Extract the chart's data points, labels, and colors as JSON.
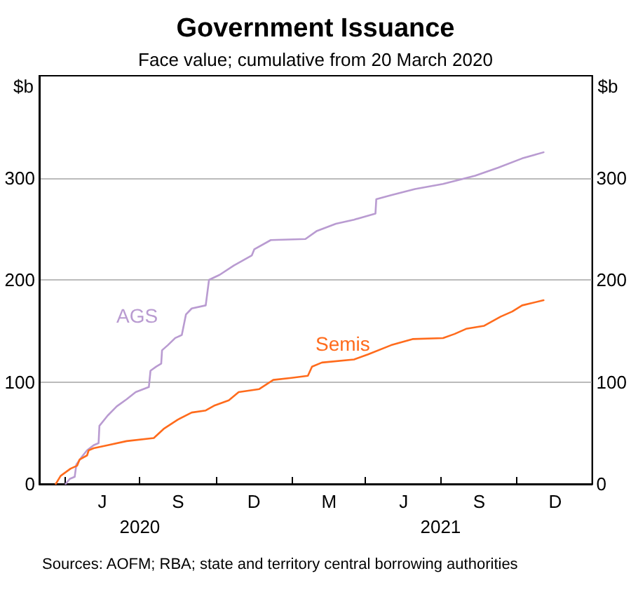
{
  "chart_data": {
    "type": "line",
    "title": "Government Issuance",
    "subtitle": "Face value; cumulative from 20 March 2020",
    "ylabel": "$b",
    "y2label": "$b",
    "xlim": [
      "2020-03-01",
      "2022-01-01"
    ],
    "xticks": [
      {
        "value": "2020-04-01",
        "label": null
      },
      {
        "value": "2020-07-01",
        "label": "2020"
      },
      {
        "value": "2020-10-01",
        "label": null
      },
      {
        "value": "2021-01-01",
        "label": null
      },
      {
        "value": "2021-04-01",
        "label": null
      },
      {
        "value": "2021-07-01",
        "label": "2021"
      },
      {
        "value": "2021-10-01",
        "label": null
      }
    ],
    "ylim": [
      0,
      400
    ],
    "yticks": [
      0,
      100,
      200,
      300
    ],
    "y2lim": [
      0,
      400
    ],
    "y2ticks": [
      0,
      100,
      200,
      300
    ],
    "grid": "y",
    "series": [
      {
        "name": "AGS",
        "color": "#b99bd1",
        "x": [
          "2020-04-02",
          "2020-04-07",
          "2020-04-13",
          "2020-04-15",
          "2020-04-22",
          "2020-04-28",
          "2020-05-06",
          "2020-05-12",
          "2020-05-13",
          "2020-05-23",
          "2020-06-03",
          "2020-06-15",
          "2020-06-26",
          "2020-07-12",
          "2020-07-14",
          "2020-07-21",
          "2020-07-27",
          "2020-07-28",
          "2020-08-04",
          "2020-08-13",
          "2020-08-21",
          "2020-08-26",
          "2020-09-02",
          "2020-09-19",
          "2020-09-23",
          "2020-10-06",
          "2020-10-23",
          "2020-11-14",
          "2020-11-17",
          "2020-12-07",
          "2021-01-18",
          "2021-02-01",
          "2021-02-24",
          "2021-03-18",
          "2021-04-13",
          "2021-04-14",
          "2021-05-02",
          "2021-05-31",
          "2021-07-04",
          "2021-08-12",
          "2021-09-09",
          "2021-10-08",
          "2021-11-03"
        ],
        "values": [
          0,
          5,
          7,
          19,
          27,
          33,
          38,
          40,
          57,
          67,
          76,
          83,
          90,
          95,
          111,
          115,
          118,
          131,
          136,
          143,
          146,
          166,
          172,
          175,
          200,
          205,
          214,
          224,
          230,
          239,
          240,
          248,
          255,
          259,
          265,
          279,
          283,
          289,
          294,
          302,
          310,
          319,
          325
        ]
      },
      {
        "name": "Semis",
        "color": "#ff6b1c",
        "x": [
          "2020-03-21",
          "2020-03-27",
          "2020-04-08",
          "2020-04-16",
          "2020-04-19",
          "2020-04-28",
          "2020-04-30",
          "2020-05-06",
          "2020-05-23",
          "2020-06-15",
          "2020-07-18",
          "2020-07-30",
          "2020-08-16",
          "2020-09-02",
          "2020-09-19",
          "2020-09-30",
          "2020-10-17",
          "2020-10-29",
          "2020-11-23",
          "2020-12-10",
          "2021-01-01",
          "2021-01-21",
          "2021-01-26",
          "2021-02-07",
          "2021-03-18",
          "2021-04-04",
          "2021-05-02",
          "2021-05-28",
          "2021-07-04",
          "2021-07-18",
          "2021-08-01",
          "2021-08-23",
          "2021-09-12",
          "2021-09-26",
          "2021-10-08",
          "2021-11-03"
        ],
        "values": [
          0,
          8,
          15,
          18,
          24,
          28,
          33,
          35,
          38,
          42,
          45,
          54,
          63,
          70,
          72,
          77,
          82,
          90,
          93,
          102,
          104,
          106,
          115,
          119,
          122,
          127,
          136,
          142,
          143,
          147,
          152,
          155,
          164,
          169,
          175,
          180
        ]
      }
    ],
    "annotations": [
      "J",
      "S",
      "D",
      "M",
      "J",
      "S",
      "D",
      "Sources: AOFM; RBA; state and territory central borrowing authorities"
    ]
  }
}
